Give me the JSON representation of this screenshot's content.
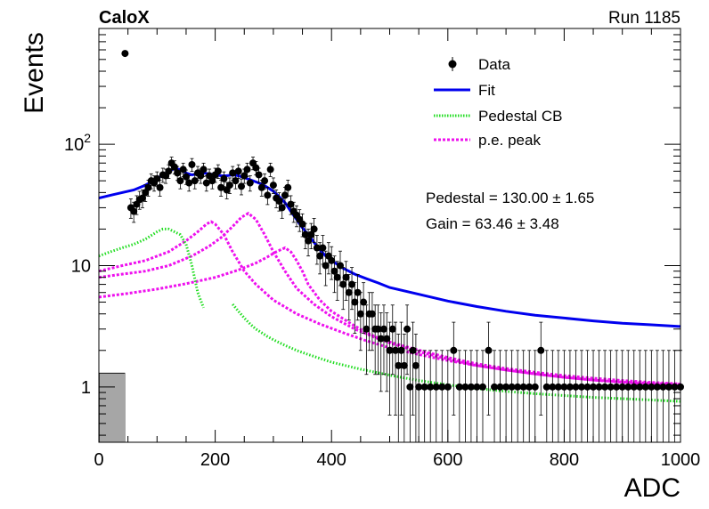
{
  "header": {
    "experiment": "CaloX",
    "run": "Run 1185"
  },
  "fit_results": {
    "pedestal": "Pedestal = 130.00 ± 1.65",
    "gain": "Gain = 63.46 ± 3.48"
  },
  "chart_data": {
    "type": "scatter",
    "xlabel": "ADC",
    "ylabel": "Events",
    "xlim": [
      0,
      1000
    ],
    "ylim": [
      0.35,
      900
    ],
    "yscale": "log",
    "x_ticks": [
      "0",
      "200",
      "400",
      "600",
      "800",
      "1000"
    ],
    "y_ticks": [
      {
        "value": 1,
        "label": "1"
      },
      {
        "value": 10,
        "label": "10"
      },
      {
        "value": 100,
        "label": "10^2"
      }
    ],
    "grid": false,
    "legend_position": "top-right",
    "legend": [
      {
        "label": "Data",
        "style": "marker",
        "color": "#000000"
      },
      {
        "label": "Fit",
        "style": "line",
        "color": "#0000ee"
      },
      {
        "label": "Pedestal CB",
        "style": "dotted",
        "color": "#22dd22"
      },
      {
        "label": "p.e. peak",
        "style": "dashed",
        "color": "#ee11ee"
      }
    ],
    "data": {
      "name": "Data",
      "x": [
        45,
        55,
        60,
        65,
        70,
        75,
        80,
        85,
        90,
        95,
        100,
        105,
        110,
        115,
        120,
        125,
        130,
        135,
        140,
        145,
        150,
        155,
        160,
        165,
        170,
        175,
        180,
        185,
        190,
        195,
        200,
        205,
        210,
        215,
        220,
        225,
        230,
        235,
        240,
        245,
        250,
        255,
        260,
        265,
        270,
        275,
        280,
        285,
        290,
        295,
        300,
        305,
        310,
        315,
        320,
        325,
        330,
        335,
        340,
        345,
        350,
        355,
        360,
        365,
        370,
        375,
        380,
        385,
        390,
        395,
        400,
        405,
        410,
        415,
        420,
        425,
        430,
        435,
        440,
        445,
        450,
        455,
        460,
        465,
        470,
        475,
        480,
        485,
        490,
        495,
        500,
        505,
        510,
        515,
        520,
        525,
        530,
        535,
        540,
        545,
        550,
        560,
        570,
        580,
        590,
        600,
        610,
        620,
        630,
        640,
        650,
        660,
        670,
        680,
        690,
        700,
        710,
        720,
        730,
        740,
        750,
        760,
        770,
        780,
        790,
        800,
        810,
        820,
        830,
        840,
        850,
        860,
        870,
        880,
        890,
        900,
        910,
        920,
        930,
        940,
        950,
        960,
        970,
        980,
        990,
        1000
      ],
      "y": [
        560,
        30,
        28,
        32,
        35,
        36,
        40,
        44,
        50,
        48,
        52,
        44,
        56,
        55,
        60,
        70,
        65,
        58,
        50,
        62,
        54,
        48,
        68,
        50,
        58,
        55,
        62,
        48,
        55,
        50,
        56,
        60,
        44,
        52,
        42,
        46,
        58,
        50,
        60,
        45,
        55,
        62,
        48,
        70,
        64,
        56,
        44,
        50,
        38,
        62,
        46,
        36,
        34,
        30,
        38,
        44,
        32,
        28,
        26,
        24,
        22,
        18,
        16,
        18,
        20,
        14,
        12,
        14,
        10,
        12,
        11,
        9,
        8,
        10,
        7,
        8,
        6,
        7,
        5,
        6,
        4,
        5,
        3,
        4,
        4,
        3,
        3,
        2.5,
        3,
        2.5,
        2,
        3,
        2,
        1.5,
        2,
        1.5,
        3,
        1,
        2,
        1.5,
        1,
        1,
        1,
        1,
        1,
        1,
        2,
        1,
        1,
        1,
        1,
        1,
        2,
        1,
        1,
        1,
        1,
        1,
        1,
        1,
        1,
        2,
        1,
        1,
        1,
        1,
        1,
        1,
        1,
        1,
        1,
        1,
        1,
        1,
        1,
        1,
        1,
        1,
        1,
        1,
        1,
        1,
        1,
        1,
        1,
        1
      ]
    },
    "fit": {
      "name": "Fit",
      "x": [
        0,
        20,
        40,
        60,
        80,
        100,
        110,
        120,
        130,
        140,
        150,
        160,
        170,
        180,
        190,
        200,
        210,
        220,
        230,
        240,
        250,
        260,
        270,
        280,
        290,
        300,
        310,
        320,
        330,
        340,
        350,
        360,
        370,
        380,
        390,
        400,
        420,
        440,
        460,
        480,
        500,
        550,
        600,
        650,
        700,
        750,
        800,
        850,
        900,
        950,
        1000
      ],
      "y": [
        36,
        38,
        40,
        42,
        46,
        52,
        56,
        60,
        63,
        62,
        58,
        56,
        57,
        58,
        57,
        56,
        55,
        55,
        56,
        55,
        53,
        51,
        49,
        47,
        44,
        41,
        37,
        33,
        28,
        24,
        20.5,
        18,
        15.5,
        13.5,
        12,
        11,
        9.5,
        8.5,
        7.8,
        7.2,
        6.6,
        5.8,
        5.1,
        4.6,
        4.2,
        3.9,
        3.7,
        3.5,
        3.35,
        3.25,
        3.15
      ]
    },
    "pedestal_cb": {
      "name": "Pedestal CB",
      "x": [
        0,
        20,
        40,
        60,
        80,
        100,
        110,
        120,
        130,
        140,
        150,
        160,
        170,
        180,
        190,
        200,
        210,
        220,
        230,
        240,
        250,
        260,
        270,
        280,
        290,
        300,
        320,
        340,
        360,
        380,
        400,
        450,
        500,
        550,
        600,
        650,
        700,
        750,
        800,
        850,
        900,
        950,
        1000
      ],
      "y": [
        12,
        13,
        14,
        15,
        16.5,
        19,
        20,
        20,
        19,
        18,
        15,
        10,
        6,
        4.5,
        null,
        null,
        null,
        null,
        4.8,
        4.2,
        3.7,
        3.3,
        3,
        2.8,
        2.6,
        2.45,
        2.2,
        2,
        1.85,
        1.72,
        1.6,
        1.4,
        1.25,
        1.13,
        1.04,
        0.97,
        0.92,
        0.88,
        0.85,
        0.82,
        0.8,
        0.78,
        0.76
      ]
    },
    "pe_peaks": [
      {
        "name": "p.e. peak 1",
        "x": [
          0,
          40,
          80,
          120,
          150,
          170,
          185,
          193,
          200,
          215,
          230,
          250,
          270,
          300,
          340,
          380,
          420,
          460,
          500,
          550,
          600,
          650,
          700,
          750,
          800,
          850,
          900,
          950,
          1000
        ],
        "y": [
          9,
          10,
          11,
          13,
          16,
          19,
          22,
          23,
          22,
          18,
          13,
          9,
          7,
          5.2,
          4,
          3.3,
          2.8,
          2.4,
          2.1,
          1.85,
          1.65,
          1.5,
          1.38,
          1.28,
          1.2,
          1.14,
          1.09,
          1.05,
          1.02
        ]
      },
      {
        "name": "p.e. peak 2",
        "x": [
          0,
          40,
          80,
          120,
          160,
          190,
          210,
          230,
          245,
          257,
          270,
          285,
          300,
          320,
          340,
          370,
          400,
          440,
          480,
          520,
          560,
          600,
          650,
          700,
          750,
          800,
          850,
          900,
          950,
          1000
        ],
        "y": [
          8,
          8.5,
          9,
          10,
          12,
          14.5,
          17,
          21,
          25,
          27,
          24,
          18,
          13,
          9,
          6.5,
          4.8,
          3.8,
          3,
          2.5,
          2.2,
          1.95,
          1.75,
          1.55,
          1.42,
          1.32,
          1.24,
          1.18,
          1.13,
          1.09,
          1.06
        ]
      },
      {
        "name": "p.e. peak 3",
        "x": [
          0,
          50,
          100,
          150,
          200,
          240,
          270,
          290,
          305,
          320,
          330,
          340,
          350,
          360,
          380,
          400,
          430,
          460,
          500,
          550,
          600,
          650,
          700,
          750,
          800,
          850,
          900,
          950,
          1000
        ],
        "y": [
          5.5,
          5.9,
          6.4,
          7.1,
          8,
          9.2,
          10.5,
          11.8,
          13,
          14,
          13,
          11,
          9,
          7,
          5.2,
          4.2,
          3.4,
          2.8,
          2.3,
          1.95,
          1.7,
          1.5,
          1.38,
          1.28,
          1.2,
          1.14,
          1.1,
          1.07,
          1.05
        ]
      }
    ]
  }
}
